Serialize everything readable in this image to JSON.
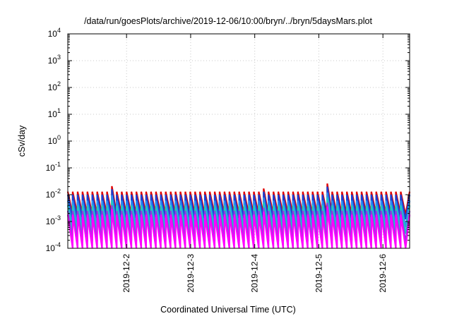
{
  "chart_data": {
    "type": "line",
    "title": "/data/run/goesPlots/archive/2019-12-06/10:00/bryn/../bryn/5daysMars.plot",
    "xlabel": "Coordinated Universal Time (UTC)",
    "ylabel": "cSv/day",
    "yscale": "log",
    "ylim": [
      0.0001,
      10000
    ],
    "xlim": [
      "2019-12-01T02:00",
      "2019-12-06T10:00"
    ],
    "grid": true,
    "ytick_labels": [
      {
        "base": "10",
        "exp": "-4"
      },
      {
        "base": "10",
        "exp": "-3"
      },
      {
        "base": "10",
        "exp": "-2"
      },
      {
        "base": "10",
        "exp": "-1"
      },
      {
        "base": "10",
        "exp": "0"
      },
      {
        "base": "10",
        "exp": "1"
      },
      {
        "base": "10",
        "exp": "2"
      },
      {
        "base": "10",
        "exp": "3"
      },
      {
        "base": "10",
        "exp": "4"
      }
    ],
    "xtick_labels": [
      "2019-12-2",
      "2019-12-3",
      "2019-12-4",
      "2019-12-5",
      "2019-12-6"
    ],
    "xtick_values": [
      "2019-12-02T00:00",
      "2019-12-03T00:00",
      "2019-12-04T00:00",
      "2019-12-05T00:00",
      "2019-12-06T00:00"
    ],
    "sawtooth_times": [
      "2019-12-01T02:00",
      "2019-12-01T03:50",
      "2019-12-01T05:40",
      "2019-12-01T07:30",
      "2019-12-01T09:20",
      "2019-12-01T11:10",
      "2019-12-01T13:00",
      "2019-12-01T14:50",
      "2019-12-01T16:40",
      "2019-12-01T18:30",
      "2019-12-01T20:20",
      "2019-12-01T22:10",
      "2019-12-02T00:00",
      "2019-12-02T01:50",
      "2019-12-02T03:40",
      "2019-12-02T05:30",
      "2019-12-02T07:20",
      "2019-12-02T09:10",
      "2019-12-02T11:00",
      "2019-12-02T12:50",
      "2019-12-02T14:40",
      "2019-12-02T16:30",
      "2019-12-02T18:20",
      "2019-12-02T20:10",
      "2019-12-02T22:00",
      "2019-12-02T23:50",
      "2019-12-03T01:40",
      "2019-12-03T03:30",
      "2019-12-03T05:20",
      "2019-12-03T07:10",
      "2019-12-03T09:00",
      "2019-12-03T10:50",
      "2019-12-03T12:40",
      "2019-12-03T14:30",
      "2019-12-03T16:20",
      "2019-12-03T18:10",
      "2019-12-03T20:00",
      "2019-12-03T21:50",
      "2019-12-03T23:40",
      "2019-12-04T01:30",
      "2019-12-04T03:20",
      "2019-12-04T05:10",
      "2019-12-04T07:00",
      "2019-12-04T08:50",
      "2019-12-04T10:40",
      "2019-12-04T12:30",
      "2019-12-04T14:20",
      "2019-12-04T16:10",
      "2019-12-04T18:00",
      "2019-12-04T19:50",
      "2019-12-04T21:40",
      "2019-12-04T23:30",
      "2019-12-05T01:20",
      "2019-12-05T03:10",
      "2019-12-05T05:00",
      "2019-12-05T06:50",
      "2019-12-05T08:40",
      "2019-12-05T10:30",
      "2019-12-05T12:20",
      "2019-12-05T14:10",
      "2019-12-05T16:00",
      "2019-12-05T17:50",
      "2019-12-05T19:40",
      "2019-12-05T21:30",
      "2019-12-05T23:20",
      "2019-12-06T01:10",
      "2019-12-06T03:00",
      "2019-12-06T04:50",
      "2019-12-06T06:40",
      "2019-12-06T08:30"
    ],
    "series": [
      {
        "color": "#e00000",
        "peak": 0.013,
        "trough": 0.0018
      },
      {
        "color": "#1a3fd0",
        "peak": 0.01,
        "trough": 0.0012
      },
      {
        "color": "#2a8cf0",
        "peak": 0.006,
        "trough": 0.0006
      },
      {
        "color": "#20c8c0",
        "peak": 0.004,
        "trough": 0.00035
      },
      {
        "color": "#8a40e0",
        "peak": 0.0025,
        "trough": 0.00018
      },
      {
        "color": "#ff00ff",
        "peak": 0.0018,
        "trough": 0.0001
      }
    ],
    "spikes": [
      {
        "index": 9,
        "factor": 1.6
      },
      {
        "index": 53,
        "factor": 2.0
      },
      {
        "index": 40,
        "factor": 1.3
      }
    ]
  }
}
